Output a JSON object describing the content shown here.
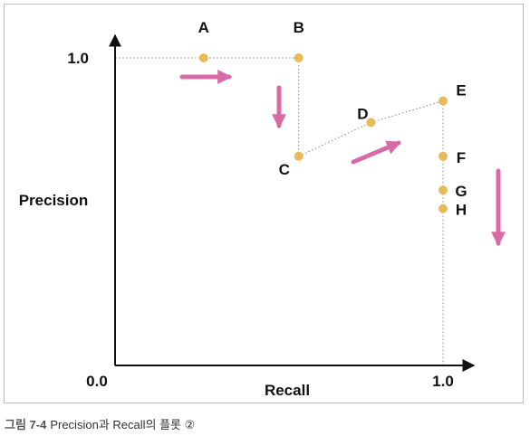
{
  "chart_data": {
    "type": "line",
    "xlabel": "Recall",
    "ylabel": "Precision",
    "x_ticks": [
      {
        "value": 0.0,
        "label": "0.0"
      },
      {
        "value": 1.0,
        "label": "1.0"
      }
    ],
    "y_ticks": [
      {
        "value": 1.0,
        "label": "1.0"
      }
    ],
    "xlim": [
      0.0,
      1.0
    ],
    "ylim": [
      0.0,
      1.0
    ],
    "grid": false,
    "points": [
      {
        "name": "A",
        "x": 0.27,
        "y": 1.0
      },
      {
        "name": "B",
        "x": 0.56,
        "y": 1.0
      },
      {
        "name": "C",
        "x": 0.56,
        "y": 0.68
      },
      {
        "name": "D",
        "x": 0.78,
        "y": 0.79
      },
      {
        "name": "E",
        "x": 1.0,
        "y": 0.86
      },
      {
        "name": "F",
        "x": 1.0,
        "y": 0.68
      },
      {
        "name": "G",
        "x": 1.0,
        "y": 0.57
      },
      {
        "name": "H",
        "x": 1.0,
        "y": 0.51
      }
    ],
    "arrows": [
      {
        "direction": "right"
      },
      {
        "direction": "down"
      },
      {
        "direction": "up-right"
      },
      {
        "direction": "down"
      }
    ],
    "colors": {
      "point": "#e8bb5a",
      "arrow": "#d86ba6",
      "axis": "#111111",
      "line": "#888888"
    }
  },
  "caption": {
    "label": "그림 7-4",
    "text": "Precision과 Recall의 플롯 ②"
  }
}
